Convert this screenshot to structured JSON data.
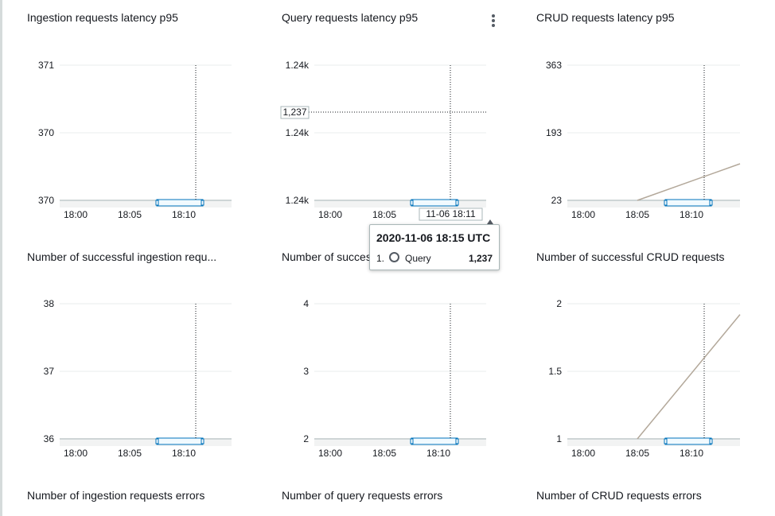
{
  "widgets": [
    {
      "title": "Ingestion requests latency p95",
      "y_ticks": [
        "371",
        "370",
        "370"
      ],
      "x_ticks": [
        "18:00",
        "18:05",
        "18:10"
      ]
    },
    {
      "title": "Query requests latency p95",
      "y_ticks": [
        "1.24k",
        "1.24k",
        "1.24k"
      ],
      "x_ticks": [
        "18:00",
        "18:05",
        "11-06 18:11"
      ],
      "hover_value_label": "1,237"
    },
    {
      "title": "CRUD requests latency p95",
      "y_ticks": [
        "363",
        "193",
        "23"
      ],
      "x_ticks": [
        "18:00",
        "18:05",
        "18:10"
      ]
    },
    {
      "title": "Number of successful ingestion requ...",
      "y_ticks": [
        "38",
        "37",
        "36"
      ],
      "x_ticks": [
        "18:00",
        "18:05",
        "18:10"
      ]
    },
    {
      "title": "Number of succes",
      "y_ticks": [
        "4",
        "3",
        "2"
      ],
      "x_ticks": [
        "18:00",
        "18:05",
        "18:10"
      ]
    },
    {
      "title": "Number of successful CRUD requests",
      "y_ticks": [
        "2",
        "1.5",
        "1"
      ],
      "x_ticks": [
        "18:00",
        "18:05",
        "18:10"
      ]
    },
    {
      "title": "Number of ingestion requests errors"
    },
    {
      "title": "Number of query requests errors"
    },
    {
      "title": "Number of CRUD requests errors"
    }
  ],
  "tooltip": {
    "time": "2020-11-06 18:15 UTC",
    "index": "1.",
    "series": "Query",
    "value": "1,237"
  },
  "colors": {
    "grid": "#eaeded",
    "crosshair": "#16191f",
    "series_line": "#b3a89a",
    "time_brush": "#0073bb"
  },
  "chart_data": [
    {
      "type": "line",
      "title": "Ingestion requests latency p95",
      "x_ticks": [
        "18:00",
        "18:05",
        "18:10"
      ],
      "y_ticks": [
        "371",
        "370",
        "370"
      ],
      "series": []
    },
    {
      "type": "line",
      "title": "Query requests latency p95",
      "x_ticks": [
        "18:00",
        "18:05"
      ],
      "y_ticks": [
        "1.24k",
        "1.24k",
        "1.24k"
      ],
      "series": [
        {
          "name": "Query",
          "x": [
            "18:15"
          ],
          "values": [
            1237
          ]
        }
      ]
    },
    {
      "type": "line",
      "title": "CRUD requests latency p95",
      "x_ticks": [
        "18:00",
        "18:05",
        "18:10"
      ],
      "y_ticks": [
        "363",
        "193",
        "23"
      ],
      "ylim": [
        23,
        363
      ],
      "series": [
        {
          "x": [
            "18:05",
            "18:15"
          ],
          "values": [
            23,
            120
          ]
        }
      ]
    },
    {
      "type": "line",
      "title": "Number of successful ingestion requ...",
      "x_ticks": [
        "18:00",
        "18:05",
        "18:10"
      ],
      "y_ticks": [
        "38",
        "37",
        "36"
      ],
      "ylim": [
        36,
        38
      ],
      "series": []
    },
    {
      "type": "line",
      "title": "Number of succes",
      "x_ticks": [
        "18:00",
        "18:05",
        "18:10"
      ],
      "y_ticks": [
        "4",
        "3",
        "2"
      ],
      "ylim": [
        2,
        4
      ],
      "series": []
    },
    {
      "type": "line",
      "title": "Number of successful CRUD requests",
      "x_ticks": [
        "18:00",
        "18:05",
        "18:10"
      ],
      "y_ticks": [
        "2",
        "1.5",
        "1"
      ],
      "ylim": [
        1,
        2
      ],
      "series": [
        {
          "x": [
            "18:05",
            "18:15"
          ],
          "values": [
            1,
            1.97
          ]
        }
      ]
    }
  ]
}
